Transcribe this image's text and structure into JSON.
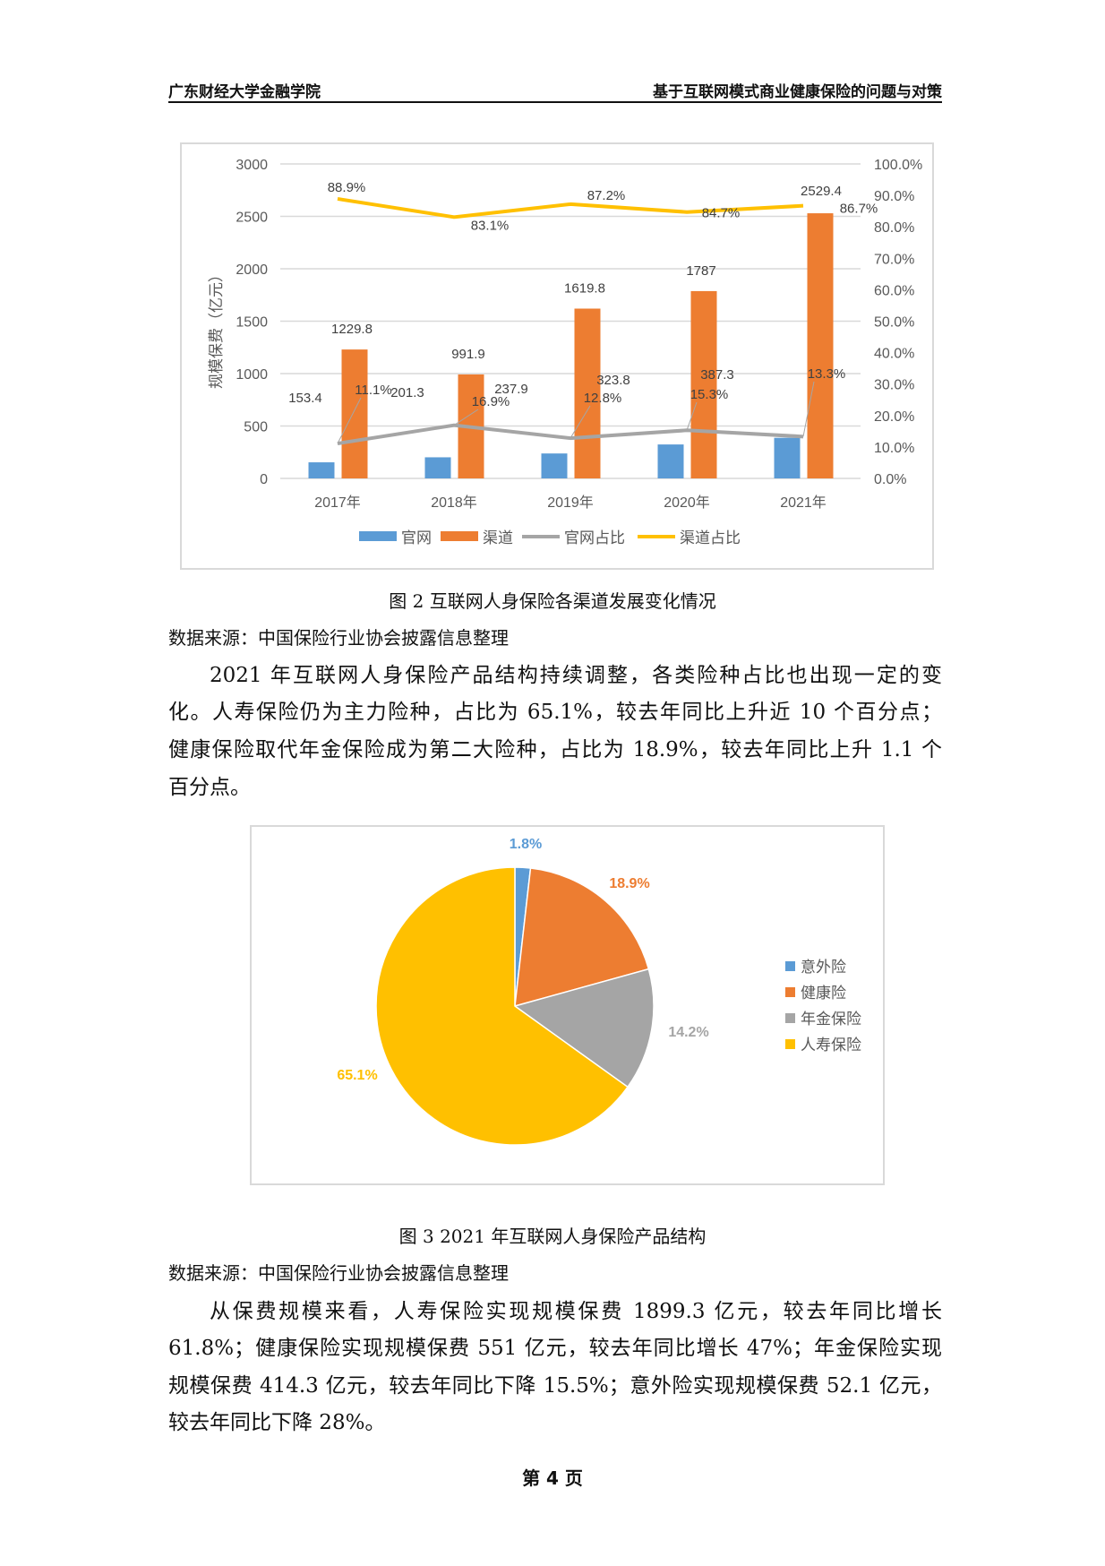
{
  "header": {
    "left": "广东财经大学金融学院",
    "right": "基于互联网模式商业健康保险的问题与对策"
  },
  "chart_data": [
    {
      "type": "bar+line",
      "categories": [
        "2017年",
        "2018年",
        "2019年",
        "2020年",
        "2021年"
      ],
      "ylabel": "规模保费（亿元）",
      "ylim": [
        0,
        3000
      ],
      "yticks": [
        "0",
        "500",
        "1000",
        "1500",
        "2000",
        "2500",
        "3000"
      ],
      "y2lim": [
        0,
        100
      ],
      "y2ticks": [
        "0.0%",
        "10.0%",
        "20.0%",
        "30.0%",
        "40.0%",
        "50.0%",
        "60.0%",
        "70.0%",
        "80.0%",
        "90.0%",
        "100.0%"
      ],
      "grid": true,
      "legend_position": "bottom",
      "series": [
        {
          "name": "官网",
          "type": "bar",
          "axis": "left",
          "color": "#5b9bd5",
          "values": [
            153.4,
            201.3,
            237.9,
            323.8,
            387.3
          ],
          "labels": [
            "153.4",
            "201.3",
            "237.9",
            "323.8",
            "387.3"
          ]
        },
        {
          "name": "渠道",
          "type": "bar",
          "axis": "left",
          "color": "#ed7d31",
          "values": [
            1229.8,
            991.9,
            1619.8,
            1787,
            2529.4
          ],
          "labels": [
            "1229.8",
            "991.9",
            "1619.8",
            "1787",
            "2529.4"
          ]
        },
        {
          "name": "官网占比",
          "type": "line",
          "axis": "right",
          "color": "#a5a5a5",
          "values": [
            11.1,
            16.9,
            12.8,
            15.3,
            13.3
          ],
          "labels": [
            "11.1%",
            "16.9%",
            "12.8%",
            "15.3%",
            "13.3%"
          ]
        },
        {
          "name": "渠道占比",
          "type": "line",
          "axis": "right",
          "color": "#ffc000",
          "values": [
            88.9,
            83.1,
            87.2,
            84.7,
            86.7
          ],
          "labels": [
            "88.9%",
            "83.1%",
            "87.2%",
            "84.7%",
            "86.7%"
          ]
        }
      ]
    },
    {
      "type": "pie",
      "categories": [
        "意外险",
        "健康险",
        "年金保险",
        "人寿保险"
      ],
      "values": [
        1.8,
        18.9,
        14.2,
        65.1
      ],
      "labels": [
        "1.8%",
        "18.9%",
        "14.2%",
        "65.1%"
      ],
      "colors": [
        "#5b9bd5",
        "#ed7d31",
        "#a5a5a5",
        "#ffc000"
      ],
      "legend_position": "right"
    }
  ],
  "fig2_caption": "图 2  互联网人身保险各渠道发展变化情况",
  "fig2_source": "数据来源：中国保险行业协会披露信息整理",
  "para1": [
    "2021 年互联网人身保险产品结构持续调整，各类险种占比也出现一定的变",
    "化。人寿保险仍为主力险种，占比为 65.1%，较去年同比上升近 10 个百分点；",
    "健康保险取代年金保险成为第二大险种，占比为 18.9%，较去年同比上升 1.1 个",
    "百分点。"
  ],
  "fig3_caption": "图 3  2021 年互联网人身保险产品结构",
  "fig3_source": "数据来源：中国保险行业协会披露信息整理",
  "para2": [
    "从保费规模来看，人寿保险实现规模保费 1899.3 亿元，较去年同比增长",
    "61.8%；健康保险实现规模保费 551 亿元，较去年同比增长 47%；年金保险实现",
    "规模保费 414.3 亿元，较去年同比下降 15.5%；意外险实现规模保费 52.1 亿元，",
    "较去年同比下降 28%。"
  ],
  "page_number": "第 4 页"
}
